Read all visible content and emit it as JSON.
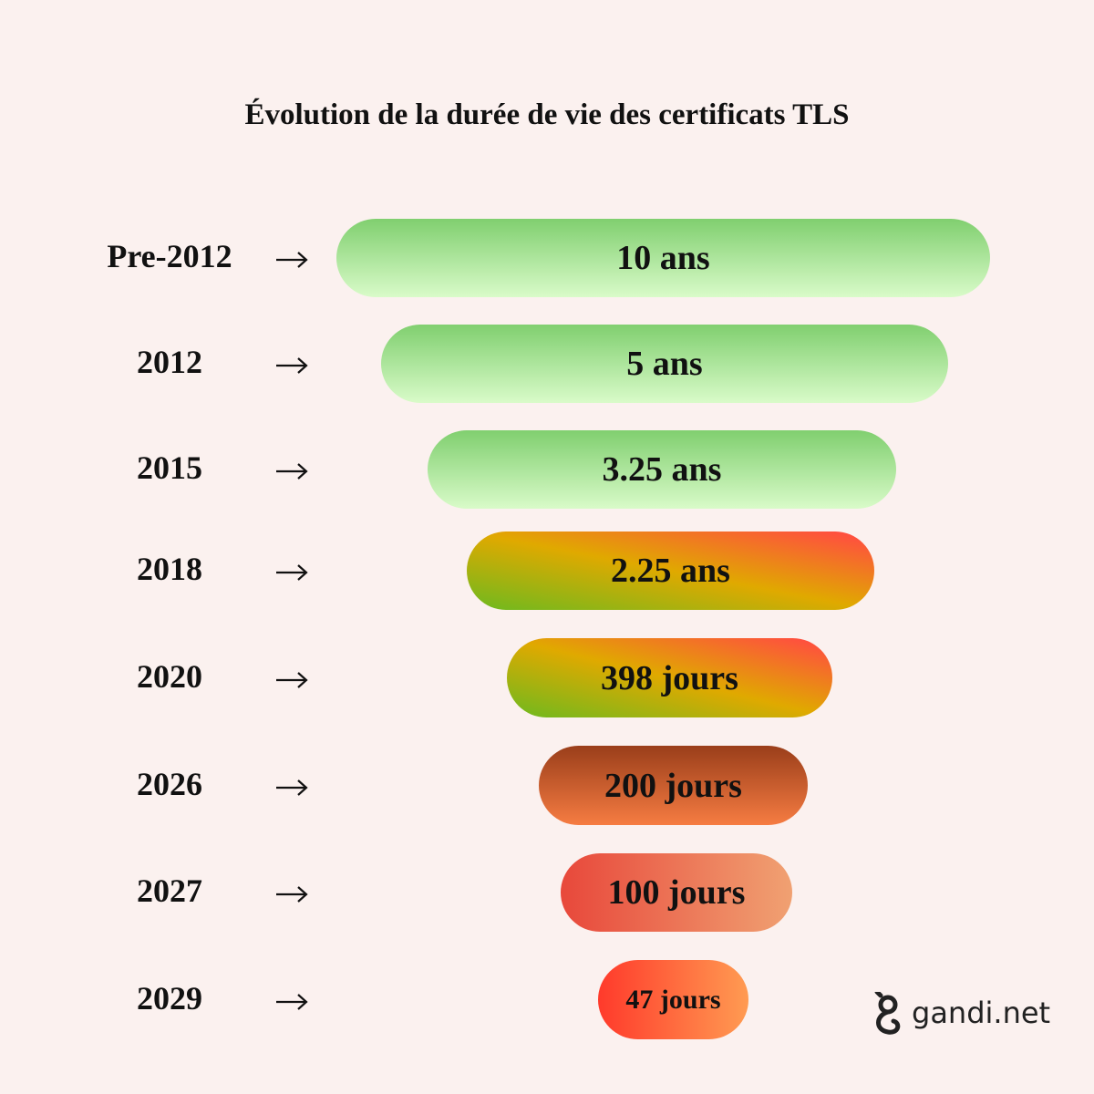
{
  "title": "Évolution de la durée de vie des certificats TLS",
  "rows": [
    {
      "label": "Pre-2012",
      "value": "10 ans"
    },
    {
      "label": "2012",
      "value": "5 ans"
    },
    {
      "label": "2015",
      "value": "3.25 ans"
    },
    {
      "label": "2018",
      "value": "2.25 ans"
    },
    {
      "label": "2020",
      "value": "398 jours"
    },
    {
      "label": "2026",
      "value": "200 jours"
    },
    {
      "label": "2027",
      "value": "100 jours"
    },
    {
      "label": "2029",
      "value": "47 jours"
    }
  ],
  "brand": "gandi.net"
}
